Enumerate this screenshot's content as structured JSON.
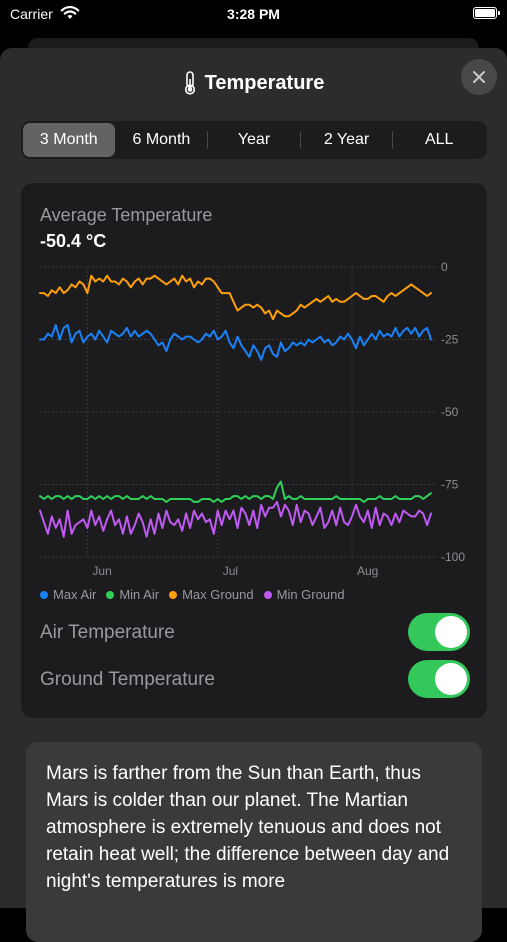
{
  "status_bar": {
    "carrier": "Carrier",
    "time": "3:28 PM"
  },
  "sheet": {
    "title": "Temperature",
    "thermo_icon": "thermometer-icon",
    "close_icon": "close-icon"
  },
  "segments": [
    {
      "label": "3 Month",
      "active": true
    },
    {
      "label": "6 Month",
      "active": false
    },
    {
      "label": "Year",
      "active": false
    },
    {
      "label": "2 Year",
      "active": false
    },
    {
      "label": "ALL",
      "active": false
    }
  ],
  "card": {
    "label": "Average Temperature",
    "value": "-50.4 °C"
  },
  "chart_data": {
    "type": "line",
    "y_ticks": [
      "0",
      "-25",
      "-50",
      "-75",
      "-100"
    ],
    "ylim": [
      -100,
      0
    ],
    "x_ticks": [
      "Jun",
      "Jul",
      "Aug"
    ],
    "x_tick_positions": [
      12,
      45,
      79
    ],
    "n_points": 100,
    "series": [
      {
        "name": "Max Air",
        "color": "#1a82f7",
        "values": [
          -25,
          -25,
          -23,
          -24,
          -20,
          -25,
          -21,
          -20,
          -26,
          -23,
          -22,
          -26,
          -24,
          -23,
          -25,
          -22,
          -24,
          -26,
          -22,
          -23,
          -24,
          -23,
          -21,
          -24,
          -22,
          -24,
          -23,
          -22,
          -23,
          -25,
          -27,
          -26,
          -29,
          -25,
          -23,
          -24,
          -25,
          -24,
          -24,
          -25,
          -26,
          -25,
          -23,
          -24,
          -22,
          -25,
          -24,
          -22,
          -26,
          -28,
          -24,
          -27,
          -29,
          -31,
          -27,
          -29,
          -32,
          -28,
          -27,
          -30,
          -31,
          -26,
          -29,
          -28,
          -26,
          -27,
          -26,
          -27,
          -25,
          -26,
          -25,
          -24,
          -26,
          -25,
          -27,
          -26,
          -24,
          -25,
          -23,
          -25,
          -28,
          -24,
          -27,
          -25,
          -23,
          -25,
          -22,
          -24,
          -23,
          -24,
          -21,
          -24,
          -22,
          -21,
          -23,
          -21,
          -24,
          -22,
          -21,
          -25
        ]
      },
      {
        "name": "Min Air",
        "color": "#30d158",
        "values": [
          -79,
          -80,
          -79,
          -80,
          -79,
          -79,
          -80,
          -79,
          -80,
          -79,
          -79,
          -80,
          -80,
          -79,
          -80,
          -79,
          -80,
          -79,
          -80,
          -79,
          -79,
          -80,
          -79,
          -80,
          -80,
          -80,
          -79,
          -80,
          -79,
          -80,
          -80,
          -80,
          -81,
          -80,
          -80,
          -80,
          -80,
          -80,
          -80,
          -81,
          -81,
          -80,
          -80,
          -80,
          -81,
          -80,
          -81,
          -80,
          -80,
          -79,
          -79,
          -80,
          -79,
          -80,
          -79,
          -79,
          -80,
          -79,
          -79,
          -80,
          -76,
          -74,
          -80,
          -79,
          -80,
          -80,
          -79,
          -80,
          -80,
          -80,
          -80,
          -80,
          -80,
          -80,
          -80,
          -79,
          -80,
          -80,
          -80,
          -80,
          -80,
          -80,
          -81,
          -80,
          -80,
          -80,
          -79,
          -80,
          -80,
          -80,
          -79,
          -80,
          -80,
          -80,
          -80,
          -79,
          -79,
          -80,
          -79,
          -78
        ]
      },
      {
        "name": "Max Ground",
        "color": "#ff9f0a",
        "values": [
          -9,
          -9,
          -10,
          -8,
          -9,
          -7,
          -9,
          -8,
          -6,
          -7,
          -5,
          -6,
          -9,
          -3,
          -5,
          -4,
          -5,
          -3,
          -5,
          -5,
          -6,
          -4,
          -5,
          -7,
          -5,
          -4,
          -6,
          -4,
          -4,
          -3,
          -4,
          -5,
          -6,
          -5,
          -4,
          -6,
          -3,
          -5,
          -4,
          -7,
          -5,
          -6,
          -4,
          -4,
          -5,
          -7,
          -9,
          -9,
          -9,
          -12,
          -15,
          -14,
          -13,
          -13,
          -14,
          -13,
          -14,
          -16,
          -15,
          -18,
          -15,
          -16,
          -17,
          -17,
          -16,
          -15,
          -13,
          -14,
          -13,
          -12,
          -11,
          -12,
          -11,
          -10,
          -12,
          -11,
          -12,
          -12,
          -11,
          -10,
          -9,
          -10,
          -11,
          -11,
          -10,
          -10,
          -11,
          -12,
          -10,
          -9,
          -10,
          -9,
          -8,
          -7,
          -6,
          -7,
          -8,
          -9,
          -10,
          -9
        ]
      },
      {
        "name": "Min Ground",
        "color": "#bf5af2",
        "values": [
          -84,
          -88,
          -92,
          -86,
          -90,
          -87,
          -93,
          -84,
          -92,
          -89,
          -88,
          -87,
          -90,
          -84,
          -89,
          -86,
          -91,
          -87,
          -84,
          -89,
          -87,
          -92,
          -86,
          -92,
          -89,
          -85,
          -88,
          -93,
          -87,
          -92,
          -85,
          -90,
          -84,
          -88,
          -89,
          -87,
          -91,
          -85,
          -90,
          -84,
          -87,
          -85,
          -88,
          -87,
          -92,
          -84,
          -89,
          -84,
          -87,
          -84,
          -90,
          -83,
          -85,
          -89,
          -84,
          -90,
          -82,
          -86,
          -83,
          -83,
          -81,
          -86,
          -82,
          -84,
          -89,
          -82,
          -88,
          -84,
          -85,
          -89,
          -86,
          -83,
          -90,
          -88,
          -84,
          -89,
          -83,
          -88,
          -89,
          -86,
          -82,
          -86,
          -88,
          -84,
          -90,
          -83,
          -89,
          -85,
          -86,
          -89,
          -85,
          -88,
          -84,
          -85,
          -86,
          -86,
          -84,
          -85,
          -89,
          -85
        ]
      }
    ]
  },
  "legend": [
    {
      "label": "Max Air",
      "color": "#1a82f7"
    },
    {
      "label": "Min Air",
      "color": "#30d158"
    },
    {
      "label": "Max Ground",
      "color": "#ff9f0a"
    },
    {
      "label": "Min Ground",
      "color": "#bf5af2"
    }
  ],
  "toggles": {
    "air": "Air Temperature",
    "ground": "Ground Temperature"
  },
  "info": {
    "text": "Mars is farther from the Sun than Earth, thus Mars is colder than our planet. The Martian atmosphere is extremely tenuous and does not retain heat well; the difference between day and night's temperatures is more"
  }
}
